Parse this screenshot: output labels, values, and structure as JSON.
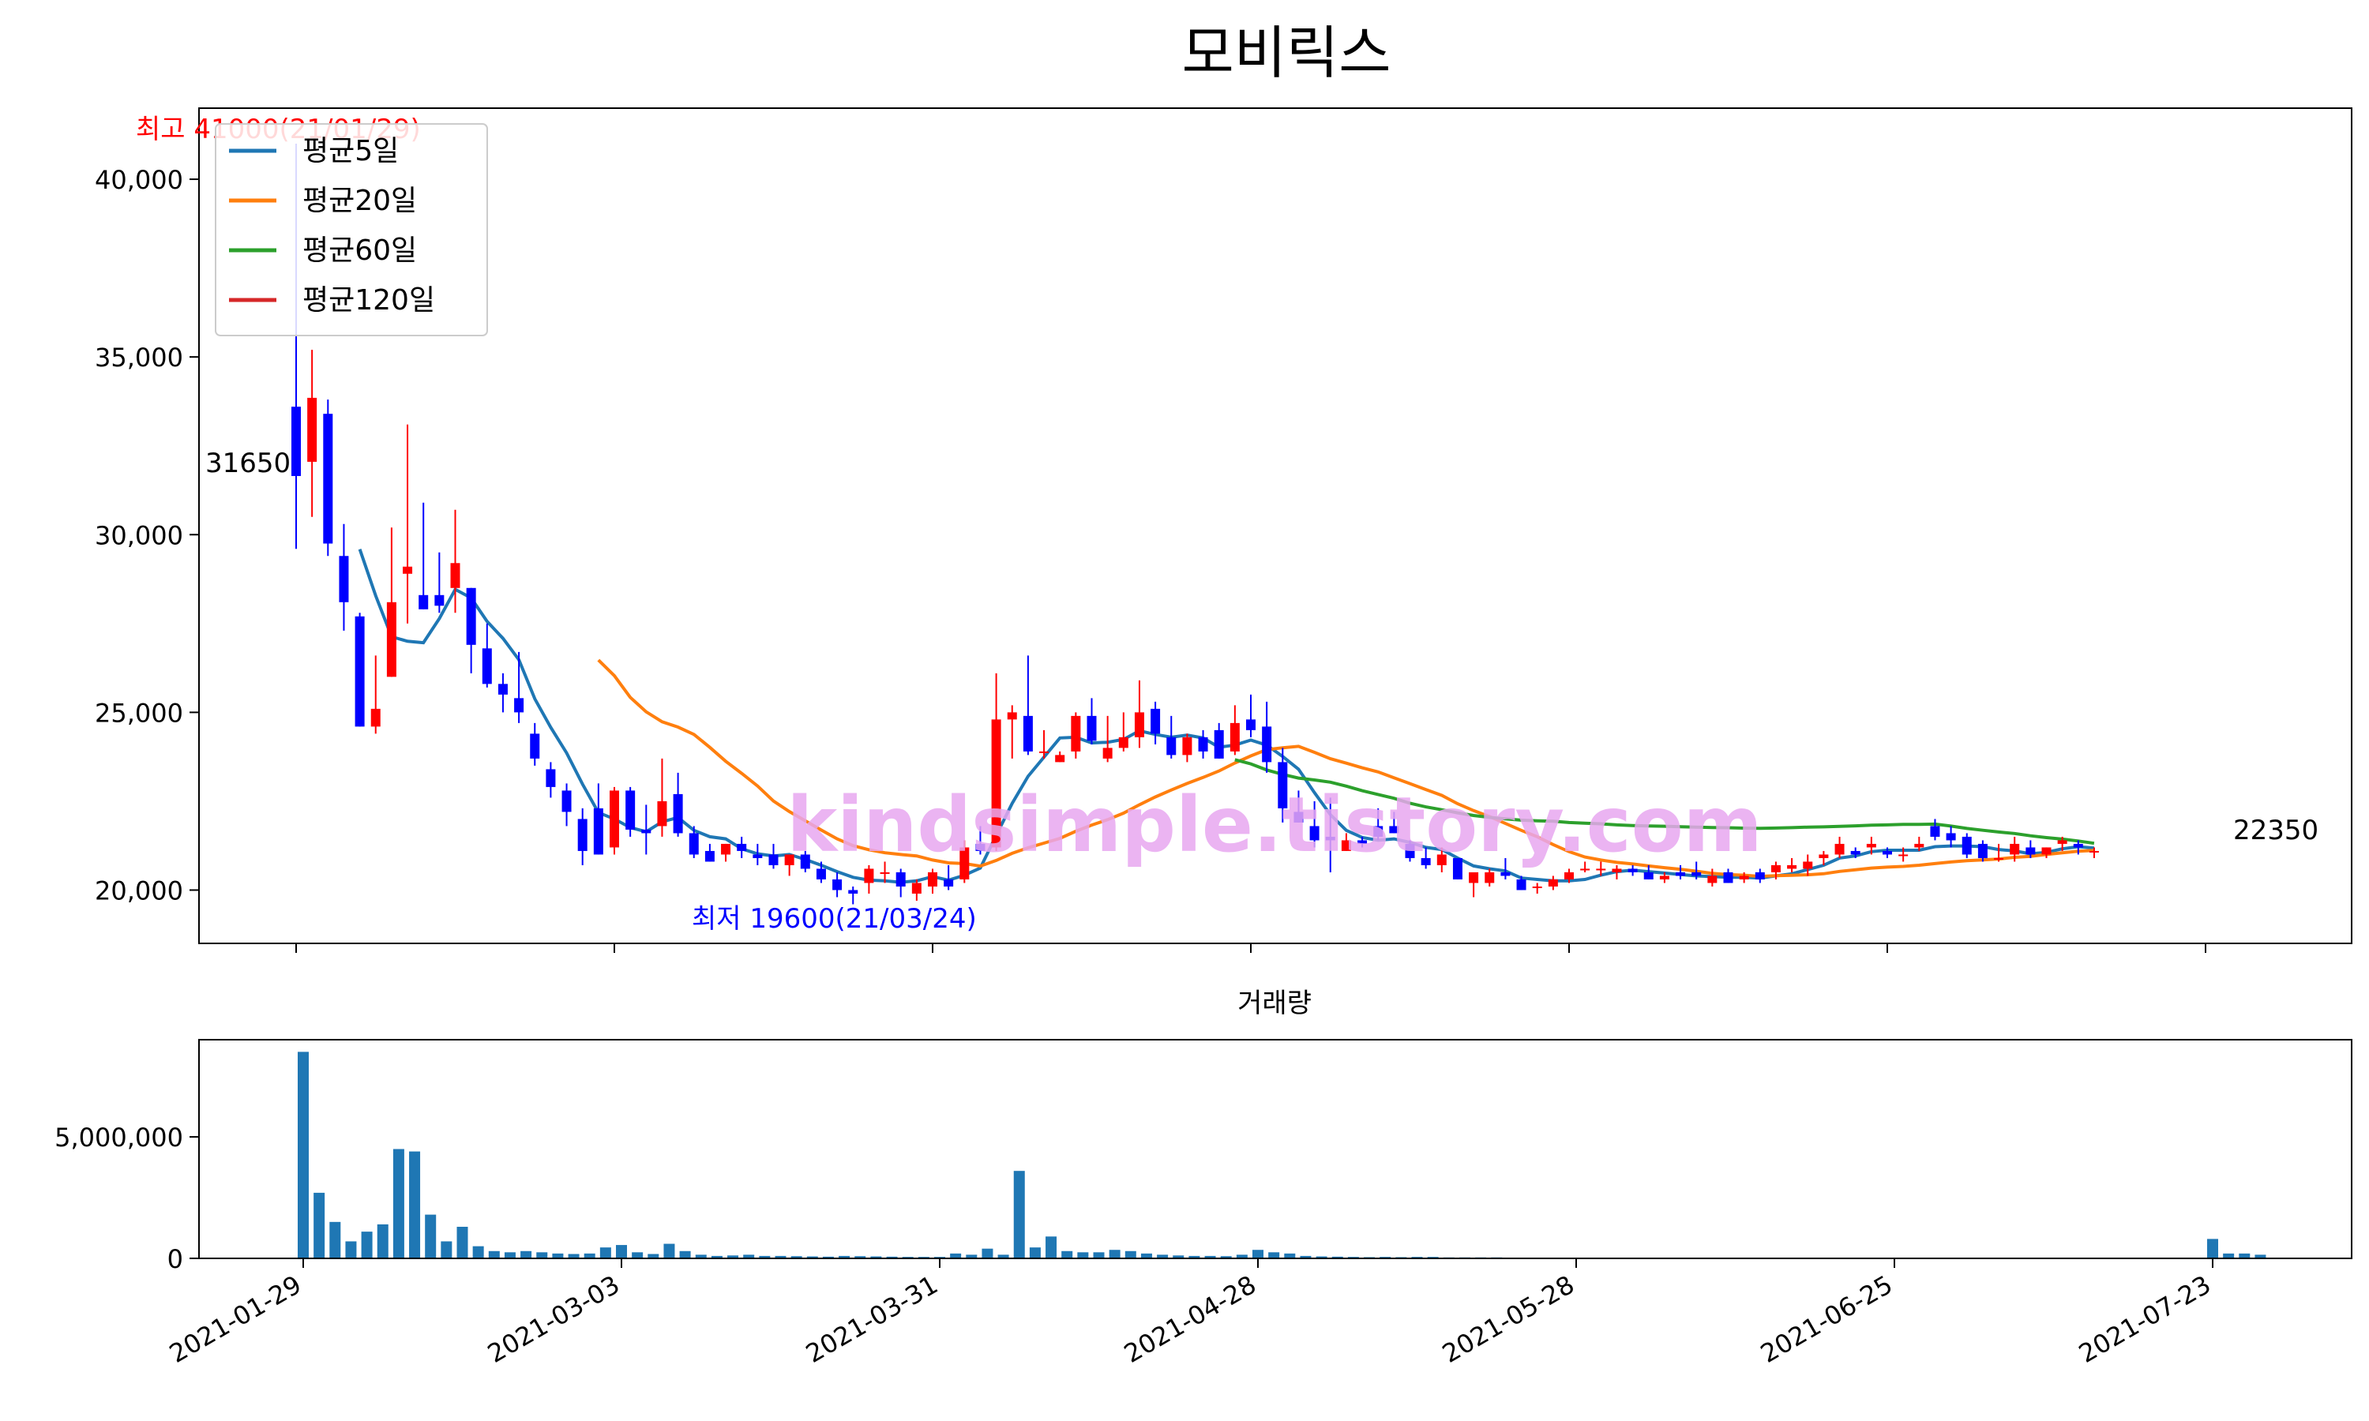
{
  "title": "모비릭스",
  "volume_title": "거래량",
  "watermark": "kindsimple.tistory.com",
  "colors": {
    "up": "#ff0000",
    "down": "#0000ff",
    "ma5": "#1f77b4",
    "ma20": "#ff7f0e",
    "ma60": "#2ca02c",
    "ma120": "#d62728",
    "volume": "#1f77b4",
    "watermark": "#e8a8f0",
    "high_label": "#ff0000",
    "low_label": "#0000ff"
  },
  "chart_data": [
    {
      "type": "candlestick",
      "title": "모비릭스",
      "legend_position": "top-left",
      "ylim": [
        18500,
        42000
      ],
      "yticks": [
        20000,
        25000,
        30000,
        35000,
        40000
      ],
      "ytick_labels": [
        "20,000",
        "25,000",
        "30,000",
        "35,000",
        "40,000"
      ],
      "xticks": [
        "2021-01-29",
        "2021-03-03",
        "2021-03-31",
        "2021-04-28",
        "2021-05-28",
        "2021-06-25",
        "2021-07-23"
      ],
      "xtick_index": [
        0,
        20,
        40,
        60,
        80,
        100,
        120
      ],
      "annotations": {
        "high_text": "최고 41000(21/01/29)",
        "low_text": "최저 19600(21/03/24)",
        "first_close_text": "31650",
        "last_close_text": "22350"
      },
      "legend": [
        "평균5일",
        "평균20일",
        "평균60일",
        "평균120일"
      ],
      "candles": [
        [
          33600,
          41000,
          29600,
          31650
        ],
        [
          32050,
          35200,
          30500,
          33850
        ],
        [
          33400,
          33800,
          29400,
          29750
        ],
        [
          29400,
          30300,
          27300,
          28100
        ],
        [
          27700,
          27800,
          24600,
          24600
        ],
        [
          24600,
          26600,
          24400,
          25100
        ],
        [
          26000,
          30200,
          26000,
          28100
        ],
        [
          28900,
          33100,
          27500,
          29100
        ],
        [
          28300,
          30900,
          27900,
          27900
        ],
        [
          28300,
          29500,
          27800,
          28000
        ],
        [
          28500,
          30700,
          27800,
          29200
        ],
        [
          28500,
          28500,
          26100,
          26900
        ],
        [
          26800,
          27500,
          25700,
          25800
        ],
        [
          25800,
          26100,
          25000,
          25500
        ],
        [
          25400,
          26700,
          24700,
          25000
        ],
        [
          24400,
          24700,
          23500,
          23700
        ],
        [
          23400,
          23600,
          22600,
          22900
        ],
        [
          22800,
          23000,
          21800,
          22200
        ],
        [
          22000,
          22300,
          20700,
          21100
        ],
        [
          22300,
          23000,
          21000,
          21000
        ],
        [
          21200,
          22900,
          21000,
          22800
        ],
        [
          22800,
          22900,
          21500,
          21700
        ],
        [
          21700,
          22400,
          21000,
          21600
        ],
        [
          21800,
          23700,
          21500,
          22500
        ],
        [
          22700,
          23300,
          21500,
          21600
        ],
        [
          21600,
          21800,
          20900,
          21000
        ],
        [
          21100,
          21300,
          20800,
          20800
        ],
        [
          21000,
          21300,
          20800,
          21300
        ],
        [
          21300,
          21500,
          20900,
          21100
        ],
        [
          21000,
          21300,
          20700,
          20900
        ],
        [
          21000,
          21300,
          20600,
          20700
        ],
        [
          20700,
          21000,
          20400,
          21000
        ],
        [
          21000,
          21100,
          20500,
          20600
        ],
        [
          20600,
          20800,
          20200,
          20300
        ],
        [
          20300,
          20500,
          19800,
          20000
        ],
        [
          20000,
          20100,
          19600,
          19900
        ],
        [
          20200,
          20700,
          19900,
          20600
        ],
        [
          20500,
          20800,
          20200,
          20500
        ],
        [
          20500,
          20600,
          19800,
          20100
        ],
        [
          19900,
          20300,
          19700,
          20200
        ],
        [
          20100,
          20600,
          19900,
          20500
        ],
        [
          20300,
          20700,
          20000,
          20100
        ],
        [
          20300,
          21400,
          20200,
          21200
        ],
        [
          21300,
          21800,
          21000,
          21100
        ],
        [
          21200,
          26100,
          21100,
          24800
        ],
        [
          24800,
          25200,
          23700,
          25000
        ],
        [
          24900,
          26600,
          23800,
          23900
        ],
        [
          23900,
          24500,
          23700,
          23900
        ],
        [
          23600,
          23900,
          23600,
          23800
        ],
        [
          23900,
          25000,
          23700,
          24900
        ],
        [
          24900,
          25400,
          24100,
          24200
        ],
        [
          23700,
          24900,
          23600,
          24000
        ],
        [
          24000,
          25000,
          23900,
          24300
        ],
        [
          24300,
          25900,
          24000,
          25000
        ],
        [
          25100,
          25300,
          24100,
          24400
        ],
        [
          24300,
          24900,
          23700,
          23800
        ],
        [
          23800,
          24400,
          23600,
          24300
        ],
        [
          24300,
          24500,
          23700,
          23900
        ],
        [
          24500,
          24700,
          23700,
          23700
        ],
        [
          23900,
          25200,
          23800,
          24700
        ],
        [
          24800,
          25500,
          24300,
          24500
        ],
        [
          24600,
          25300,
          23300,
          23600
        ],
        [
          23600,
          24000,
          21900,
          22300
        ],
        [
          22200,
          22800,
          21900,
          21900
        ],
        [
          21800,
          22500,
          21200,
          21400
        ],
        [
          21500,
          22600,
          20500,
          21400
        ],
        [
          21100,
          21600,
          21100,
          21400
        ],
        [
          21400,
          21500,
          21200,
          21300
        ],
        [
          21800,
          22300,
          21400,
          21500
        ],
        [
          21800,
          22200,
          21600,
          21600
        ],
        [
          21300,
          21400,
          20800,
          20900
        ],
        [
          20900,
          21200,
          20600,
          20700
        ],
        [
          20700,
          21200,
          20500,
          21000
        ],
        [
          20900,
          20900,
          20300,
          20300
        ],
        [
          20200,
          20400,
          19800,
          20500
        ],
        [
          20200,
          20600,
          20100,
          20500
        ],
        [
          20500,
          20900,
          20300,
          20400
        ],
        [
          20300,
          20400,
          20000,
          20000
        ],
        [
          20100,
          20200,
          19900,
          20100
        ],
        [
          20100,
          20400,
          20000,
          20300
        ],
        [
          20300,
          20600,
          20200,
          20500
        ],
        [
          20600,
          20800,
          20500,
          20600
        ],
        [
          20600,
          20800,
          20400,
          20600
        ],
        [
          20500,
          20700,
          20300,
          20600
        ],
        [
          20600,
          20700,
          20400,
          20500
        ],
        [
          20500,
          20700,
          20300,
          20300
        ],
        [
          20300,
          20500,
          20200,
          20400
        ],
        [
          20500,
          20700,
          20300,
          20400
        ],
        [
          20500,
          20800,
          20300,
          20400
        ],
        [
          20200,
          20600,
          20100,
          20400
        ],
        [
          20500,
          20600,
          20200,
          20200
        ],
        [
          20300,
          20500,
          20200,
          20400
        ],
        [
          20500,
          20600,
          20200,
          20300
        ],
        [
          20500,
          20800,
          20300,
          20700
        ],
        [
          20600,
          20900,
          20500,
          20700
        ],
        [
          20600,
          21000,
          20400,
          20800
        ],
        [
          20900,
          21100,
          20700,
          21000
        ],
        [
          21000,
          21500,
          20900,
          21300
        ],
        [
          21100,
          21200,
          20900,
          21000
        ],
        [
          21200,
          21500,
          21000,
          21300
        ],
        [
          21100,
          21200,
          20900,
          21000
        ],
        [
          21000,
          21200,
          20800,
          21000
        ],
        [
          21200,
          21500,
          21100,
          21300
        ],
        [
          21800,
          22000,
          21400,
          21500
        ],
        [
          21600,
          21800,
          21200,
          21400
        ],
        [
          21500,
          21600,
          20900,
          21000
        ],
        [
          21300,
          21400,
          20800,
          20900
        ],
        [
          20900,
          21300,
          20800,
          20900
        ],
        [
          21000,
          21500,
          20800,
          21300
        ],
        [
          21200,
          21400,
          20900,
          21000
        ],
        [
          21000,
          21200,
          20900,
          21200
        ],
        [
          21300,
          21500,
          21100,
          21400
        ],
        [
          21300,
          21400,
          21000,
          21200
        ],
        [
          21100,
          21200,
          20900,
          21100
        ]
      ],
      "ma5": [],
      "ma20": [],
      "ma60": [],
      "ma120": []
    },
    {
      "type": "bar",
      "title": "거래량",
      "ylim": [
        0,
        9000000
      ],
      "yticks": [
        0,
        5000000
      ],
      "ytick_labels": [
        "0",
        "5,000,000"
      ],
      "xticks": [
        "2021-01-29",
        "2021-03-03",
        "2021-03-31",
        "2021-04-28",
        "2021-05-28",
        "2021-06-25",
        "2021-07-23"
      ],
      "xtick_index": [
        0,
        20,
        40,
        60,
        80,
        100,
        120
      ],
      "values": [
        8500000,
        2700000,
        1500000,
        700000,
        1100000,
        1400000,
        4500000,
        4400000,
        1800000,
        700000,
        1300000,
        500000,
        300000,
        250000,
        300000,
        250000,
        200000,
        180000,
        200000,
        450000,
        550000,
        250000,
        180000,
        600000,
        300000,
        150000,
        100000,
        120000,
        150000,
        100000,
        100000,
        90000,
        80000,
        70000,
        100000,
        90000,
        80000,
        70000,
        60000,
        60000,
        60000,
        200000,
        150000,
        400000,
        150000,
        3600000,
        450000,
        900000,
        300000,
        250000,
        250000,
        350000,
        300000,
        200000,
        150000,
        120000,
        100000,
        100000,
        90000,
        150000,
        350000,
        250000,
        200000,
        100000,
        80000,
        70000,
        60000,
        50000,
        60000,
        50000,
        60000,
        60000,
        40000,
        40000,
        40000,
        40000,
        30000,
        30000,
        30000,
        30000,
        30000,
        30000,
        30000,
        30000,
        30000,
        30000,
        30000,
        30000,
        30000,
        30000,
        30000,
        30000,
        30000,
        30000,
        30000,
        30000,
        30000,
        30000,
        30000,
        30000,
        30000,
        30000,
        30000,
        30000,
        30000,
        30000,
        30000,
        30000,
        30000,
        30000,
        30000,
        30000,
        30000,
        30000,
        30000,
        30000,
        30000,
        30000,
        30000,
        30000,
        800000,
        200000,
        200000,
        150000
      ]
    }
  ]
}
